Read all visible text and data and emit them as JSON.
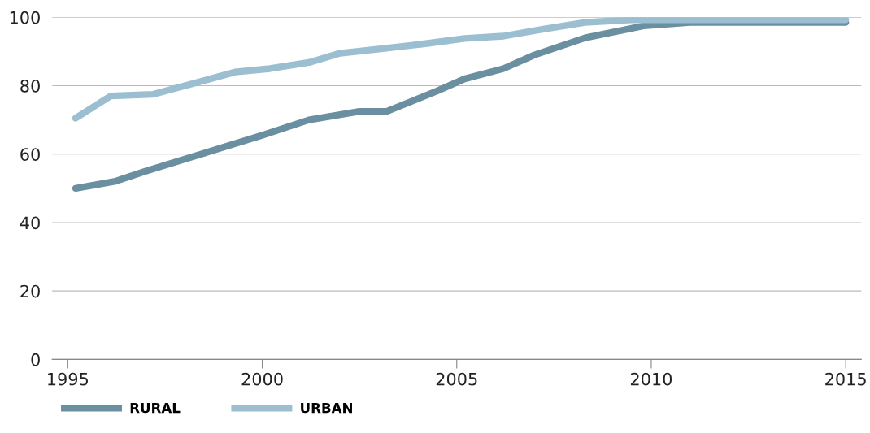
{
  "chart_data": {
    "type": "line",
    "xlim": [
      1994.6,
      2015.4
    ],
    "xticks": [
      1995,
      2000,
      2005,
      2010,
      2015
    ],
    "ylim": [
      0,
      100
    ],
    "yticks": [
      0,
      20,
      40,
      60,
      80,
      100
    ],
    "grid": "y",
    "legend": "bottom left",
    "series": [
      {
        "name": "RURAL",
        "color": "#6a8fa0",
        "x": [
          1995.2,
          1996.2,
          1997,
          1998,
          1999,
          2000,
          2001.2,
          2002.5,
          2003.2,
          2004.5,
          2005.2,
          2006.2,
          2007,
          2008.3,
          2009.8,
          2011,
          2015
        ],
        "values": [
          50,
          52,
          55,
          58.5,
          62,
          65.5,
          70,
          72.5,
          72.5,
          78.5,
          82,
          85,
          89,
          94,
          97.5,
          98.5,
          98.5
        ]
      },
      {
        "name": "URBAN",
        "color": "#9bbfd0",
        "x": [
          1995.2,
          1996.1,
          1997.2,
          1998.5,
          1999.3,
          2000.2,
          2001.2,
          2002,
          2003,
          2004.2,
          2005.2,
          2006.2,
          2007.2,
          2008.3,
          2009.5,
          2015
        ],
        "values": [
          70.5,
          77,
          77.5,
          81.5,
          84,
          85,
          86.8,
          89.5,
          90.7,
          92.3,
          93.8,
          94.5,
          96.5,
          98.5,
          99.3,
          99.3
        ]
      }
    ]
  }
}
